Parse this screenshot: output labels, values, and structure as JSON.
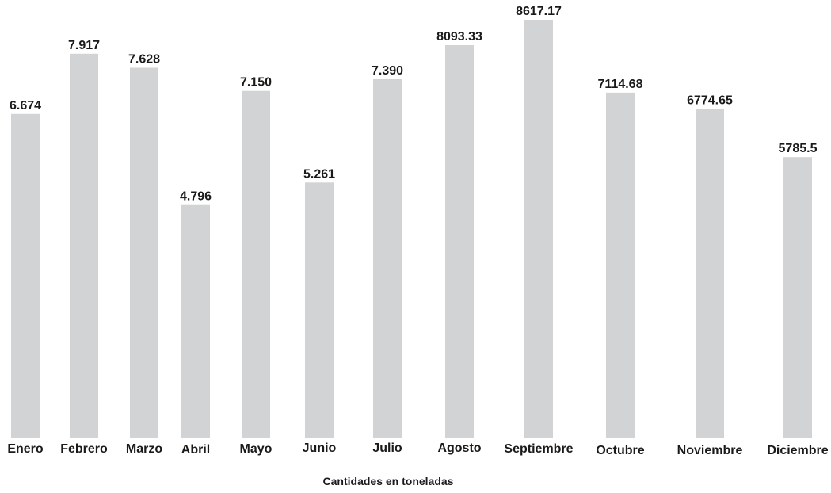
{
  "chart_data": {
    "type": "bar",
    "categories": [
      "Enero",
      "Febrero",
      "Marzo",
      "Abril",
      "Mayo",
      "Junio",
      "Julio",
      "Agosto",
      "Septiembre",
      "Octubre",
      "Noviembre",
      "Diciembre"
    ],
    "values": [
      6674,
      7917,
      7628,
      4796,
      7150,
      5261,
      7390,
      8093.33,
      8617.17,
      7114.68,
      6774.65,
      5785.5
    ],
    "data_labels": [
      "6.674",
      "7.917",
      "7.628",
      "4.796",
      "7.150",
      "5.261",
      "7.390",
      "8093.33",
      "8617.17",
      "7114.68",
      "6774.65",
      "5785.5"
    ],
    "title": "",
    "xlabel": "Cantidades en toneladas",
    "ylabel": "",
    "ylim": [
      0,
      8617.17
    ],
    "grid": false,
    "bar_color": "#d1d3d4"
  }
}
